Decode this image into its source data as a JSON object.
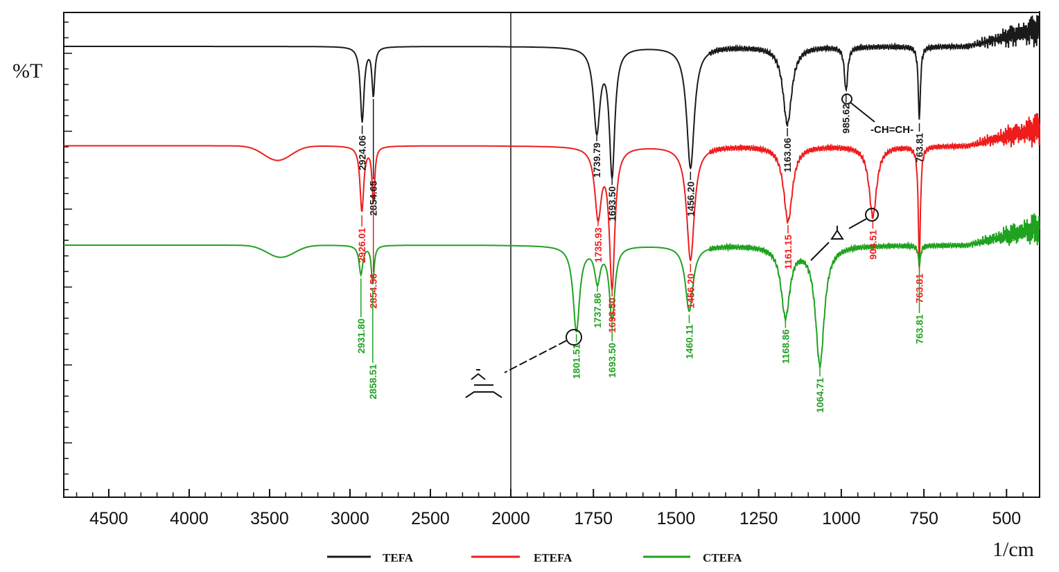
{
  "chart_data": {
    "type": "line",
    "title": "",
    "xlabel": "1/cm",
    "ylabel": "%T",
    "xlim": [
      4780,
      400
    ],
    "ylim": [
      0,
      100
    ],
    "x_axis_break": 2000,
    "x_ticks": [
      "4500",
      "4000",
      "3500",
      "3000",
      "2500",
      "2000",
      "1750",
      "1500",
      "1250",
      "1000",
      "750",
      "500"
    ],
    "x_tick_values": [
      4500,
      4000,
      3500,
      3000,
      2500,
      2000,
      1750,
      1500,
      1250,
      1000,
      750,
      500
    ],
    "legend_position": "bottom",
    "series": [
      {
        "name": "TEFA",
        "color": "#1a1a1a",
        "baseline": 93,
        "broad": [],
        "peaks": [
          {
            "x": 2924.06,
            "label": "2924.06",
            "y": 77.5,
            "w": 14
          },
          {
            "x": 2854.65,
            "label": "2854.65",
            "y": 83,
            "w": 10
          },
          {
            "x": 1739.79,
            "label": "1739.79",
            "y": 76,
            "w": 12
          },
          {
            "x": 1693.5,
            "label": "1693.50",
            "y": 67,
            "w": 10
          },
          {
            "x": 1456.2,
            "label": "1456.20",
            "y": 68,
            "w": 14
          },
          {
            "x": 1163.06,
            "label": "1163.06",
            "y": 77,
            "w": 16
          },
          {
            "x": 985.62,
            "label": "985.62",
            "y": 84,
            "w": 6
          },
          {
            "x": 763.81,
            "label": "763.81",
            "y": 78,
            "w": 4
          }
        ]
      },
      {
        "name": "ETEFA",
        "color": "#ee1c1c",
        "baseline": 72.5,
        "broad": [
          {
            "x": 3450,
            "y": 69.5,
            "w": 120
          }
        ],
        "peaks": [
          {
            "x": 2926.01,
            "label": "2926.01",
            "y": 59,
            "w": 14
          },
          {
            "x": 2854.56,
            "label": "2854.56",
            "y": 61,
            "w": 10
          },
          {
            "x": 1735.93,
            "label": "1735.93",
            "y": 58.5,
            "w": 12
          },
          {
            "x": 1693.5,
            "label": "1693.50",
            "y": 44,
            "w": 10
          },
          {
            "x": 1456.2,
            "label": "1456.20",
            "y": 49,
            "w": 14
          },
          {
            "x": 1161.15,
            "label": "1161.15",
            "y": 57,
            "w": 16
          },
          {
            "x": 904.51,
            "label": "904.51",
            "y": 58,
            "w": 14
          },
          {
            "x": 763.81,
            "label": "763.81",
            "y": 49,
            "w": 4
          }
        ]
      },
      {
        "name": "CTEFA",
        "color": "#1fa21f",
        "baseline": 52,
        "broad": [
          {
            "x": 3430,
            "y": 49.5,
            "w": 120
          }
        ],
        "peaks": [
          {
            "x": 2931.8,
            "label": "2931.80",
            "y": 46,
            "w": 14
          },
          {
            "x": 2858.51,
            "label": "2858.51",
            "y": 44,
            "w": 10
          },
          {
            "x": 1801.51,
            "label": "1801.51",
            "y": 34.5,
            "w": 12
          },
          {
            "x": 1737.86,
            "label": "1737.86",
            "y": 45,
            "w": 10
          },
          {
            "x": 1693.5,
            "label": "1693.50",
            "y": 37,
            "w": 10
          },
          {
            "x": 1460.11,
            "label": "1460.11",
            "y": 38.5,
            "w": 14
          },
          {
            "x": 1168.86,
            "label": "1168.86",
            "y": 37.5,
            "w": 16
          },
          {
            "x": 1064.71,
            "label": "1064.71",
            "y": 27.5,
            "w": 16
          },
          {
            "x": 763.81,
            "label": "763.81",
            "y": 48,
            "w": 4
          }
        ]
      }
    ],
    "annotations": [
      {
        "text": "-CH=CH-",
        "target": "TEFA 985.62"
      },
      {
        "text": "epoxide",
        "target": "ETEFA 904.51"
      },
      {
        "text": "cyclic carbonate",
        "target": "CTEFA 1801.51"
      }
    ]
  },
  "labels": {
    "ch_ch": "-CH=CH-"
  }
}
